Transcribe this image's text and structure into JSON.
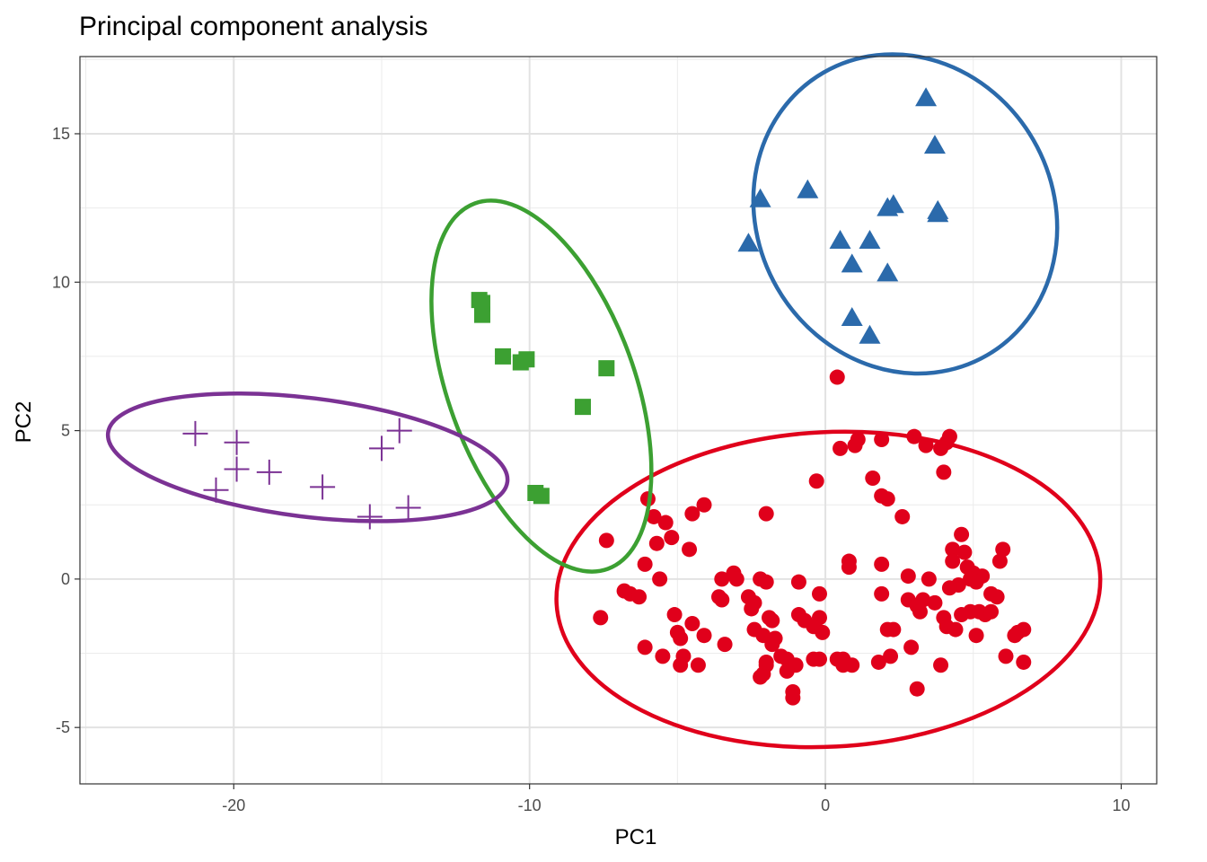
{
  "chart_data": {
    "type": "scatter",
    "title": "Principal component analysis",
    "xlabel": "PC1",
    "ylabel": "PC2",
    "xlim": [
      -25.2,
      11.2
    ],
    "ylim": [
      -6.9,
      17.6
    ],
    "x_ticks": [
      -20,
      -10,
      0,
      10
    ],
    "y_ticks": [
      -5,
      0,
      5,
      10,
      15
    ],
    "x_tick_labels": [
      "-20",
      "-10",
      "0",
      "10"
    ],
    "y_tick_labels": [
      "-5",
      "0",
      "5",
      "10",
      "15"
    ],
    "grid": true,
    "legend": "none",
    "series": [
      {
        "shape": "circle",
        "color": "#e0001b",
        "ellipse": {
          "cx": 0.1,
          "cy": -0.35,
          "rx": 9.2,
          "ry": 5.3,
          "angle_deg": 3
        },
        "points": [
          [
            0.4,
            6.8
          ],
          [
            -0.3,
            3.3
          ],
          [
            0.5,
            4.4
          ],
          [
            1.0,
            4.5
          ],
          [
            1.1,
            4.7
          ],
          [
            1.9,
            4.7
          ],
          [
            3.0,
            4.8
          ],
          [
            3.4,
            4.5
          ],
          [
            4.2,
            4.8
          ],
          [
            4.1,
            4.6
          ],
          [
            3.9,
            4.4
          ],
          [
            4.0,
            3.6
          ],
          [
            1.6,
            3.4
          ],
          [
            1.9,
            2.8
          ],
          [
            2.1,
            2.7
          ],
          [
            2.6,
            2.1
          ],
          [
            -2.0,
            2.2
          ],
          [
            -4.1,
            2.5
          ],
          [
            -4.5,
            2.2
          ],
          [
            -5.8,
            2.1
          ],
          [
            -5.4,
            1.9
          ],
          [
            -6.0,
            2.7
          ],
          [
            -5.7,
            1.2
          ],
          [
            -5.2,
            1.4
          ],
          [
            -7.4,
            1.3
          ],
          [
            -6.1,
            0.5
          ],
          [
            -5.6,
            0.0
          ],
          [
            -4.6,
            1.0
          ],
          [
            -3.5,
            0.0
          ],
          [
            -3.1,
            0.2
          ],
          [
            -3.0,
            0.0
          ],
          [
            -2.2,
            0.0
          ],
          [
            -2.0,
            -0.1
          ],
          [
            -0.9,
            -0.1
          ],
          [
            0.8,
            0.6
          ],
          [
            0.8,
            0.4
          ],
          [
            1.9,
            0.5
          ],
          [
            2.8,
            0.1
          ],
          [
            3.5,
            0.0
          ],
          [
            4.3,
            1.0
          ],
          [
            4.6,
            1.5
          ],
          [
            4.7,
            0.9
          ],
          [
            4.3,
            0.6
          ],
          [
            4.8,
            0.4
          ],
          [
            5.0,
            0.2
          ],
          [
            5.3,
            0.1
          ],
          [
            6.0,
            1.0
          ],
          [
            5.9,
            0.6
          ],
          [
            4.9,
            0.0
          ],
          [
            5.1,
            -0.1
          ],
          [
            4.5,
            -0.2
          ],
          [
            4.2,
            -0.3
          ],
          [
            5.6,
            -0.5
          ],
          [
            5.8,
            -0.6
          ],
          [
            2.8,
            -0.7
          ],
          [
            3.3,
            -0.7
          ],
          [
            3.7,
            -0.8
          ],
          [
            3.1,
            -0.9
          ],
          [
            3.2,
            -1.1
          ],
          [
            -2.6,
            -0.6
          ],
          [
            -2.4,
            -0.8
          ],
          [
            -2.5,
            -1.0
          ],
          [
            -1.9,
            -1.3
          ],
          [
            -1.8,
            -1.4
          ],
          [
            -0.9,
            -1.2
          ],
          [
            -0.7,
            -1.4
          ],
          [
            -0.2,
            -1.3
          ],
          [
            -0.4,
            -1.6
          ],
          [
            -6.8,
            -0.4
          ],
          [
            -6.6,
            -0.5
          ],
          [
            -6.3,
            -0.6
          ],
          [
            -7.6,
            -1.3
          ],
          [
            -5.1,
            -1.2
          ],
          [
            -4.5,
            -1.5
          ],
          [
            -5.0,
            -1.8
          ],
          [
            -4.9,
            -2.0
          ],
          [
            -4.1,
            -1.9
          ],
          [
            -3.4,
            -2.2
          ],
          [
            -2.4,
            -1.7
          ],
          [
            -2.1,
            -1.9
          ],
          [
            -1.7,
            -2.0
          ],
          [
            -1.8,
            -2.2
          ],
          [
            -0.1,
            -1.8
          ],
          [
            2.1,
            -1.7
          ],
          [
            2.3,
            -1.7
          ],
          [
            2.9,
            -2.3
          ],
          [
            4.0,
            -1.3
          ],
          [
            4.1,
            -1.6
          ],
          [
            4.4,
            -1.7
          ],
          [
            4.6,
            -1.2
          ],
          [
            4.9,
            -1.1
          ],
          [
            5.2,
            -1.1
          ],
          [
            5.4,
            -1.2
          ],
          [
            5.6,
            -1.1
          ],
          [
            5.1,
            -1.9
          ],
          [
            6.5,
            -1.8
          ],
          [
            6.7,
            -1.7
          ],
          [
            6.4,
            -1.9
          ],
          [
            6.1,
            -2.6
          ],
          [
            6.7,
            -2.8
          ],
          [
            -6.1,
            -2.3
          ],
          [
            -5.5,
            -2.6
          ],
          [
            -4.8,
            -2.6
          ],
          [
            -4.9,
            -2.9
          ],
          [
            -4.3,
            -2.9
          ],
          [
            -1.5,
            -2.6
          ],
          [
            -1.3,
            -2.7
          ],
          [
            -1.0,
            -2.9
          ],
          [
            -1.3,
            -3.1
          ],
          [
            -2.0,
            -2.9
          ],
          [
            -2.1,
            -3.2
          ],
          [
            -2.2,
            -3.3
          ],
          [
            -0.4,
            -2.7
          ],
          [
            -0.2,
            -2.7
          ],
          [
            0.4,
            -2.7
          ],
          [
            0.6,
            -2.7
          ],
          [
            0.9,
            -2.9
          ],
          [
            0.6,
            -2.9
          ],
          [
            1.8,
            -2.8
          ],
          [
            2.2,
            -2.6
          ],
          [
            3.9,
            -2.9
          ],
          [
            3.1,
            -3.7
          ],
          [
            -1.1,
            -3.8
          ],
          [
            -1.1,
            -4.0
          ],
          [
            -2.0,
            -2.8
          ],
          [
            -3.5,
            -0.7
          ],
          [
            -3.6,
            -0.6
          ],
          [
            -0.2,
            -0.5
          ],
          [
            1.9,
            -0.5
          ]
        ]
      },
      {
        "shape": "triangle",
        "color": "#2b6aab",
        "ellipse": {
          "cx": 2.7,
          "cy": 12.3,
          "rx": 5.0,
          "ry": 5.5,
          "angle_deg": 30
        },
        "points": [
          [
            3.4,
            16.2
          ],
          [
            3.7,
            14.6
          ],
          [
            -2.2,
            12.8
          ],
          [
            -0.6,
            13.1
          ],
          [
            2.1,
            12.5
          ],
          [
            2.3,
            12.6
          ],
          [
            3.8,
            12.4
          ],
          [
            3.8,
            12.3
          ],
          [
            -2.6,
            11.3
          ],
          [
            0.5,
            11.4
          ],
          [
            1.5,
            11.4
          ],
          [
            0.9,
            10.6
          ],
          [
            2.1,
            10.3
          ],
          [
            0.9,
            8.8
          ],
          [
            1.5,
            8.2
          ]
        ]
      },
      {
        "shape": "square",
        "color": "#3ca032",
        "ellipse": {
          "cx": -9.6,
          "cy": 6.5,
          "rx": 3.15,
          "ry": 6.55,
          "angle_deg": 20
        },
        "points": [
          [
            -11.7,
            9.4
          ],
          [
            -11.6,
            9.3
          ],
          [
            -11.6,
            8.9
          ],
          [
            -10.9,
            7.5
          ],
          [
            -10.1,
            7.4
          ],
          [
            -10.3,
            7.3
          ],
          [
            -7.4,
            7.1
          ],
          [
            -8.2,
            5.8
          ],
          [
            -9.8,
            2.9
          ],
          [
            -9.6,
            2.8
          ]
        ]
      },
      {
        "shape": "plus",
        "color": "#7b3294",
        "ellipse": {
          "cx": -17.5,
          "cy": 4.1,
          "rx": 6.8,
          "ry": 2.0,
          "angle_deg": -7
        },
        "points": [
          [
            -21.3,
            4.9
          ],
          [
            -19.9,
            4.6
          ],
          [
            -14.4,
            5.0
          ],
          [
            -15.0,
            4.4
          ],
          [
            -19.9,
            3.7
          ],
          [
            -18.8,
            3.6
          ],
          [
            -17.0,
            3.1
          ],
          [
            -20.6,
            3.0
          ],
          [
            -14.1,
            2.4
          ],
          [
            -15.4,
            2.1
          ]
        ]
      }
    ]
  }
}
